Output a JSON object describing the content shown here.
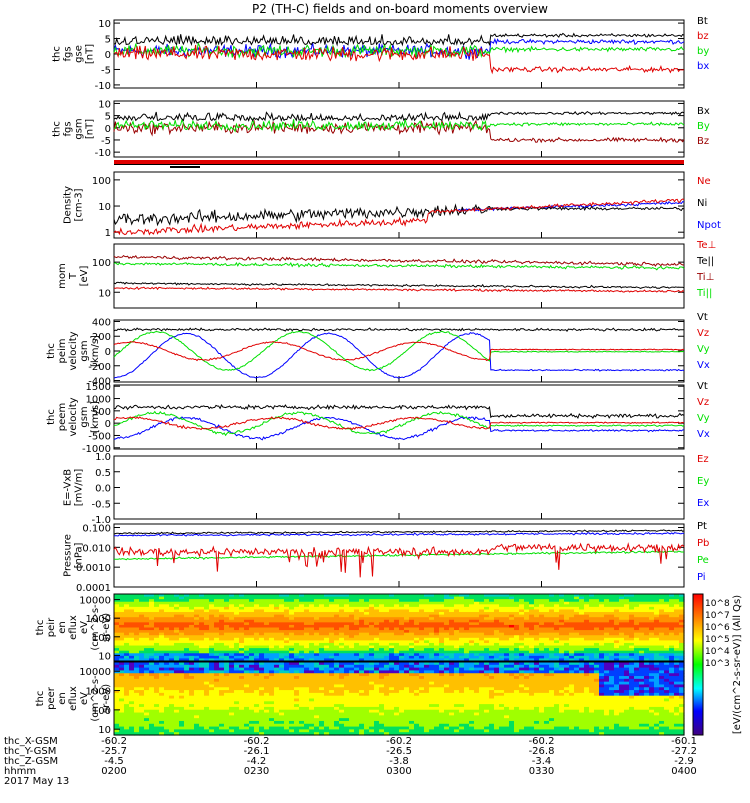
{
  "title": "P2 (TH-C) fields and on-board moments overview",
  "colors": {
    "black": "#000000",
    "red": "#e00000",
    "green": "#00e000",
    "blue": "#0000ff",
    "darkred": "#990000",
    "ybarfill": "#e00000"
  },
  "chart_data": [
    {
      "type": "line",
      "id": "fgs",
      "ylabel": [
        "thc",
        "fgs",
        "gse",
        "[nT]"
      ],
      "yticks": [
        -10,
        -5,
        0,
        5,
        10
      ],
      "ylim": [
        -11,
        11
      ],
      "series": [
        {
          "name": "Bt",
          "color": "black"
        },
        {
          "name": "bz",
          "color": "red"
        },
        {
          "name": "by",
          "color": "green"
        },
        {
          "name": "bx",
          "color": "blue"
        }
      ]
    },
    {
      "type": "line",
      "id": "fgs-gsm",
      "ylabel": [
        "thc",
        "fgs",
        "gsm",
        "[nT]"
      ],
      "yticks": [
        -10,
        -5,
        0,
        5,
        10
      ],
      "ylim": [
        -12,
        11
      ],
      "series": [
        {
          "name": "Bx",
          "color": "black"
        },
        {
          "name": "By",
          "color": "green"
        },
        {
          "name": "Bz",
          "color": "darkred"
        }
      ]
    },
    {
      "type": "bar",
      "id": "mode-bar"
    },
    {
      "type": "line",
      "id": "density",
      "scale": "log",
      "ylabel": [
        "Density",
        "[cm-3]"
      ],
      "yticks": [
        1,
        10,
        100
      ],
      "ylim": [
        0.6,
        200
      ],
      "series": [
        {
          "name": "Ne",
          "color": "red"
        },
        {
          "name": "Ni",
          "color": "black"
        },
        {
          "name": "Npot",
          "color": "blue"
        }
      ]
    },
    {
      "type": "line",
      "id": "temp",
      "scale": "log",
      "ylabel": [
        "mom",
        "T",
        "[eV]"
      ],
      "yticks": [
        10,
        100
      ],
      "ylim": [
        3,
        400
      ],
      "series": [
        {
          "name": "Te⊥",
          "color": "red"
        },
        {
          "name": "Te||",
          "color": "black"
        },
        {
          "name": "Ti⊥",
          "color": "darkred"
        },
        {
          "name": "Ti||",
          "color": "green"
        }
      ]
    },
    {
      "type": "line",
      "id": "peim",
      "ylabel": [
        "thc",
        "peim",
        "velocity",
        "gsm",
        "[km/s]"
      ],
      "yticks": [
        -400,
        -200,
        0,
        200,
        400
      ],
      "ylim": [
        -420,
        420
      ],
      "series": [
        {
          "name": "Vt",
          "color": "black"
        },
        {
          "name": "Vz",
          "color": "red"
        },
        {
          "name": "Vy",
          "color": "green"
        },
        {
          "name": "Vx",
          "color": "blue"
        }
      ]
    },
    {
      "type": "line",
      "id": "peem",
      "ylabel": [
        "thc",
        "peem",
        "velocity",
        "gsm",
        "[km/s]"
      ],
      "yticks": [
        -1000,
        -500,
        0,
        500,
        1000,
        1500
      ],
      "ylim": [
        -1050,
        1550
      ],
      "series": [
        {
          "name": "Vt",
          "color": "black"
        },
        {
          "name": "Vz",
          "color": "red"
        },
        {
          "name": "Vy",
          "color": "green"
        },
        {
          "name": "Vx",
          "color": "blue"
        }
      ]
    },
    {
      "type": "line",
      "id": "efield",
      "ylabel": [
        "E=-VxB",
        "[mV/m]"
      ],
      "yticks": [
        -1.0,
        -0.5,
        0.0,
        0.5,
        1.0
      ],
      "ylim": [
        -1.0,
        1.0
      ],
      "series": [
        {
          "name": "Ez",
          "color": "red"
        },
        {
          "name": "Ey",
          "color": "green"
        },
        {
          "name": "Ex",
          "color": "blue"
        }
      ]
    },
    {
      "type": "line",
      "id": "pressure",
      "scale": "log",
      "ylabel": [
        "Pressure",
        "[nPa]"
      ],
      "yticks": [
        0.0001,
        0.001,
        0.01,
        0.1
      ],
      "ylim": [
        0.0001,
        0.15
      ],
      "series": [
        {
          "name": "Pt",
          "color": "black"
        },
        {
          "name": "Pb",
          "color": "red"
        },
        {
          "name": "Pe",
          "color": "green"
        },
        {
          "name": "Pi",
          "color": "blue"
        }
      ]
    },
    {
      "type": "heatmap",
      "id": "peir",
      "ylabel": [
        "thc",
        "peir",
        "en",
        "eflux",
        "eV",
        "(cm^2-s-",
        "sr-eV)"
      ],
      "yticks": [
        10,
        100,
        1000,
        10000
      ],
      "ylim": [
        5,
        20000
      ]
    },
    {
      "type": "heatmap",
      "id": "peer",
      "ylabel": [
        "thc",
        "peer",
        "en",
        "eflux",
        "eV",
        "(cm^2-s-",
        "sr-eV)"
      ],
      "yticks": [
        10,
        100,
        1000,
        10000
      ],
      "ylim": [
        5,
        30000
      ]
    }
  ],
  "colorbar": {
    "label": "[eV/(cm^2-s-sr-eV)] (All Qs)",
    "ticks": [
      "10^8",
      "10^7",
      "10^6",
      "10^5",
      "10^4",
      "10^3"
    ]
  },
  "xaxis": {
    "row_labels": [
      "thc_X-GSM",
      "thc_Y-GSM",
      "thc_Z-GSM",
      "hhmm"
    ],
    "date": "2017 May 13",
    "columns": [
      {
        "x_gsm": "-60.2",
        "y_gsm": "-25.7",
        "z_gsm": "-4.5",
        "hhmm": "0200"
      },
      {
        "x_gsm": "-60.2",
        "y_gsm": "-26.1",
        "z_gsm": "-4.2",
        "hhmm": "0230"
      },
      {
        "x_gsm": "-60.2",
        "y_gsm": "-26.5",
        "z_gsm": "-3.8",
        "hhmm": "0300"
      },
      {
        "x_gsm": "-60.2",
        "y_gsm": "-26.8",
        "z_gsm": "-3.4",
        "hhmm": "0330"
      },
      {
        "x_gsm": "-60.1",
        "y_gsm": "-27.2",
        "z_gsm": "-2.9",
        "hhmm": "0400"
      }
    ]
  }
}
